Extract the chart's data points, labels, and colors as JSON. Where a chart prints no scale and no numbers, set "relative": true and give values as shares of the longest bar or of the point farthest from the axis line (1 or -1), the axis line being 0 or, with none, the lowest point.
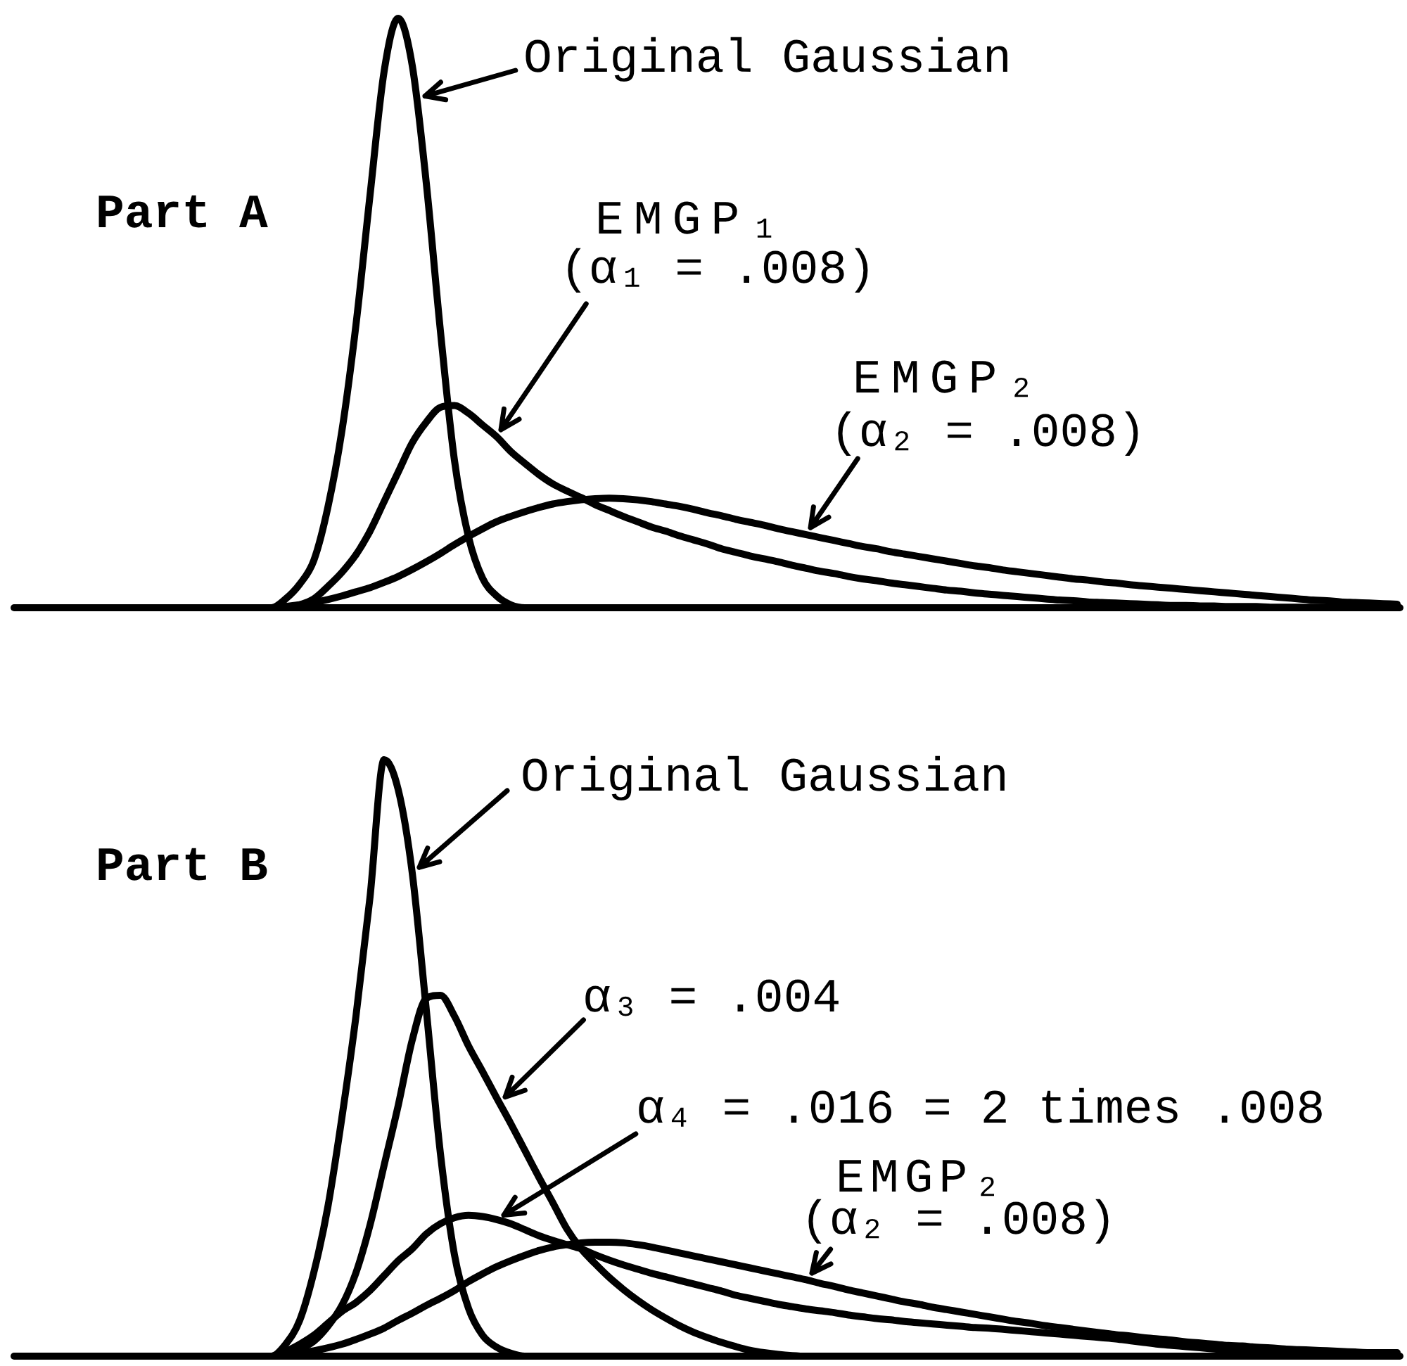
{
  "chart_data": [
    {
      "type": "line",
      "relative": true,
      "categories": [
        null,
        null,
        null,
        null,
        null,
        null,
        null,
        null,
        null,
        null,
        null,
        null,
        null,
        null,
        null,
        null,
        null,
        null,
        null,
        null,
        null,
        null,
        null,
        null,
        null,
        null,
        null,
        null,
        null,
        null,
        null,
        null,
        null,
        null,
        null,
        null,
        null,
        null,
        null,
        null,
        null,
        null,
        null,
        null,
        null,
        null,
        null,
        null,
        null,
        null,
        null,
        null,
        null,
        null,
        null,
        null,
        null,
        null,
        null,
        null,
        null,
        null,
        null,
        null,
        null,
        null,
        null,
        null,
        null,
        null,
        null,
        null,
        null,
        null,
        null,
        null,
        null,
        null,
        null,
        null,
        null,
        null,
        null,
        null,
        null,
        null,
        null,
        null,
        null,
        null,
        null,
        null,
        null,
        null,
        null,
        null,
        null,
        null,
        null
      ],
      "series": [
        {
          "name": "Original Gaussian",
          "color": "#000000",
          "values": [
            0,
            0,
            0,
            0,
            0,
            0,
            0,
            0,
            0,
            0,
            0,
            0,
            0,
            0,
            0,
            0,
            0,
            0,
            0,
            0.015,
            0.04,
            0.08,
            0.17,
            0.3,
            0.48,
            0.7,
            0.91,
            1,
            0.92,
            0.72,
            0.47,
            0.25,
            0.12,
            0.05,
            0.02,
            0.005,
            0,
            0,
            0,
            0,
            0,
            0,
            0,
            0,
            0,
            0,
            0,
            0,
            0,
            0,
            0,
            0,
            0,
            0,
            0,
            0,
            0,
            0,
            0,
            0,
            0,
            0,
            0,
            0,
            0,
            0,
            0,
            0,
            0,
            0,
            0,
            0,
            0,
            0,
            0,
            0,
            0,
            0,
            0,
            0,
            0,
            0,
            0,
            0,
            0,
            0,
            0,
            0,
            0,
            0,
            0,
            0,
            0,
            0,
            0,
            0,
            0,
            0,
            0
          ]
        },
        {
          "name": "EMGP₁\n(α₁ = .008)",
          "color": "#000000",
          "values": [
            0,
            0,
            0,
            0,
            0,
            0,
            0,
            0,
            0,
            0,
            0,
            0,
            0,
            0,
            0,
            0,
            0,
            0,
            0,
            0,
            0.005,
            0.015,
            0.036,
            0.06,
            0.09,
            0.13,
            0.18,
            0.23,
            0.28,
            0.315,
            0.34,
            0.343,
            0.33,
            0.31,
            0.29,
            0.265,
            0.245,
            0.226,
            0.21,
            0.198,
            0.187,
            0.175,
            0.165,
            0.155,
            0.146,
            0.137,
            0.13,
            0.122,
            0.115,
            0.108,
            0.1,
            0.094,
            0.088,
            0.083,
            0.078,
            0.072,
            0.067,
            0.062,
            0.058,
            0.053,
            0.049,
            0.046,
            0.042,
            0.039,
            0.036,
            0.033,
            0.03,
            0.028,
            0.025,
            0.023,
            0.021,
            0.019,
            0.017,
            0.015,
            0.013,
            0.012,
            0.01,
            0.009,
            0.008,
            0.007,
            0.006,
            0.005,
            0.004,
            0.004,
            0.003,
            0.003,
            0.002,
            0.002,
            0.002,
            0.001,
            0.001,
            0.001,
            0.001,
            0.001,
            0.001,
            0.001,
            0.001,
            0.001,
            0.001
          ]
        },
        {
          "name": "EMGP₂\n(α₂ = .008)",
          "color": "#000000",
          "values": [
            0,
            0,
            0,
            0,
            0,
            0,
            0,
            0,
            0,
            0,
            0,
            0,
            0,
            0,
            0,
            0,
            0,
            0,
            0,
            0.002,
            0.005,
            0.009,
            0.014,
            0.02,
            0.027,
            0.034,
            0.043,
            0.053,
            0.065,
            0.078,
            0.092,
            0.107,
            0.121,
            0.134,
            0.146,
            0.155,
            0.163,
            0.17,
            0.176,
            0.18,
            0.183,
            0.185,
            0.186,
            0.185,
            0.183,
            0.18,
            0.176,
            0.172,
            0.167,
            0.161,
            0.156,
            0.15,
            0.145,
            0.14,
            0.134,
            0.129,
            0.124,
            0.119,
            0.114,
            0.109,
            0.104,
            0.1,
            0.095,
            0.091,
            0.087,
            0.083,
            0.079,
            0.075,
            0.071,
            0.068,
            0.064,
            0.061,
            0.058,
            0.055,
            0.052,
            0.049,
            0.047,
            0.044,
            0.042,
            0.039,
            0.037,
            0.035,
            0.033,
            0.031,
            0.029,
            0.027,
            0.025,
            0.023,
            0.021,
            0.019,
            0.017,
            0.015,
            0.013,
            0.012,
            0.01,
            0.009,
            0.008,
            0.007,
            0.006
          ]
        }
      ],
      "annotations": [
        "Part A"
      ]
    },
    {
      "type": "line",
      "relative": true,
      "categories": [
        null,
        null,
        null,
        null,
        null,
        null,
        null,
        null,
        null,
        null,
        null,
        null,
        null,
        null,
        null,
        null,
        null,
        null,
        null,
        null,
        null,
        null,
        null,
        null,
        null,
        null,
        null,
        null,
        null,
        null,
        null,
        null,
        null,
        null,
        null,
        null,
        null,
        null,
        null,
        null,
        null,
        null,
        null,
        null,
        null,
        null,
        null,
        null,
        null,
        null,
        null,
        null,
        null,
        null,
        null,
        null,
        null,
        null,
        null,
        null,
        null,
        null,
        null,
        null,
        null,
        null,
        null,
        null,
        null,
        null,
        null,
        null,
        null,
        null,
        null,
        null,
        null,
        null,
        null,
        null,
        null,
        null,
        null,
        null,
        null,
        null,
        null,
        null,
        null,
        null,
        null,
        null,
        null,
        null,
        null,
        null,
        null,
        null,
        null
      ],
      "series": [
        {
          "name": "Original Gaussian",
          "color": "#000000",
          "values": [
            0,
            0,
            0,
            0,
            0,
            0,
            0,
            0,
            0,
            0,
            0,
            0,
            0,
            0,
            0,
            0,
            0,
            0,
            0,
            0.02,
            0.06,
            0.14,
            0.25,
            0.4,
            0.57,
            0.77,
            1,
            0.95,
            0.81,
            0.58,
            0.34,
            0.17,
            0.08,
            0.035,
            0.015,
            0.005,
            0,
            0,
            0,
            0,
            0,
            0,
            0,
            0,
            0,
            0,
            0,
            0,
            0,
            0,
            0,
            0,
            0,
            0,
            0,
            0,
            0,
            0,
            0,
            0,
            0,
            0,
            0,
            0,
            0,
            0,
            0,
            0,
            0,
            0,
            0,
            0,
            0,
            0,
            0,
            0,
            0,
            0,
            0,
            0,
            0,
            0,
            0,
            0,
            0,
            0,
            0,
            0,
            0,
            0,
            0,
            0,
            0,
            0,
            0,
            0,
            0,
            0,
            0
          ]
        },
        {
          "name": "α₃ = .004",
          "color": "#000000",
          "values": [
            0,
            0,
            0,
            0,
            0,
            0,
            0,
            0,
            0,
            0,
            0,
            0,
            0,
            0,
            0,
            0,
            0,
            0,
            0,
            0.005,
            0.012,
            0.025,
            0.05,
            0.085,
            0.14,
            0.22,
            0.32,
            0.42,
            0.53,
            0.6,
            0.605,
            0.57,
            0.52,
            0.477,
            0.433,
            0.39,
            0.345,
            0.3,
            0.257,
            0.213,
            0.18,
            0.155,
            0.132,
            0.112,
            0.094,
            0.078,
            0.064,
            0.051,
            0.04,
            0.031,
            0.023,
            0.016,
            0.01,
            0.006,
            0.003,
            0.001,
            0,
            0,
            0,
            0,
            0,
            0,
            0,
            0,
            0,
            0,
            0,
            0,
            0,
            0,
            0,
            0,
            0,
            0,
            0,
            0,
            0,
            0,
            0,
            0,
            0,
            0,
            0,
            0,
            0,
            0,
            0,
            0,
            0,
            0,
            0,
            0,
            0,
            0,
            0,
            0,
            0,
            0,
            0
          ]
        },
        {
          "name": "α₄ = .016 = 2 times .008",
          "color": "#000000",
          "values": [
            0,
            0,
            0,
            0,
            0,
            0,
            0,
            0,
            0,
            0,
            0,
            0,
            0,
            0,
            0,
            0,
            0,
            0,
            0,
            0.008,
            0.02,
            0.035,
            0.055,
            0.075,
            0.09,
            0.11,
            0.135,
            0.16,
            0.18,
            0.205,
            0.222,
            0.232,
            0.236,
            0.234,
            0.229,
            0.222,
            0.212,
            0.202,
            0.194,
            0.187,
            0.18,
            0.17,
            0.161,
            0.153,
            0.146,
            0.139,
            0.133,
            0.127,
            0.121,
            0.115,
            0.109,
            0.102,
            0.097,
            0.092,
            0.087,
            0.083,
            0.079,
            0.076,
            0.073,
            0.069,
            0.066,
            0.063,
            0.061,
            0.058,
            0.056,
            0.054,
            0.052,
            0.05,
            0.048,
            0.047,
            0.045,
            0.043,
            0.041,
            0.039,
            0.037,
            0.035,
            0.033,
            0.031,
            0.029,
            0.026,
            0.023,
            0.02,
            0.018,
            0.016,
            0.014,
            0.012,
            0.01,
            0.009,
            0.007,
            0.005,
            0.003,
            null,
            null,
            null,
            null,
            null,
            null,
            null,
            null
          ]
        },
        {
          "name": "EMGP₂\n(α₂ = .008)",
          "color": "#000000",
          "values": [
            0,
            0,
            0,
            0,
            0,
            0,
            0,
            0,
            0,
            0,
            0,
            0,
            0,
            0,
            0,
            0,
            0,
            0,
            0,
            0.002,
            0.005,
            0.009,
            0.014,
            0.02,
            0.028,
            0.037,
            0.047,
            0.06,
            0.072,
            0.085,
            0.097,
            0.11,
            0.125,
            0.138,
            0.15,
            0.16,
            0.169,
            0.177,
            0.183,
            0.187,
            0.19,
            0.191,
            0.191,
            0.19,
            0.187,
            0.183,
            0.178,
            0.173,
            0.168,
            0.163,
            0.158,
            0.153,
            0.148,
            0.143,
            0.138,
            0.133,
            0.128,
            0.122,
            0.117,
            0.111,
            0.106,
            0.101,
            0.096,
            0.091,
            0.087,
            0.082,
            0.078,
            0.074,
            0.07,
            0.066,
            0.062,
            0.058,
            0.055,
            0.051,
            0.048,
            0.045,
            0.042,
            0.039,
            0.036,
            0.034,
            0.031,
            0.029,
            0.027,
            0.024,
            0.022,
            0.02,
            0.018,
            0.017,
            0.015,
            0.014,
            0.012,
            0.011,
            0.01,
            0.009,
            0.008,
            0.007,
            0.006,
            0.006,
            0.006
          ]
        }
      ],
      "annotations": [
        "Part B"
      ]
    }
  ]
}
